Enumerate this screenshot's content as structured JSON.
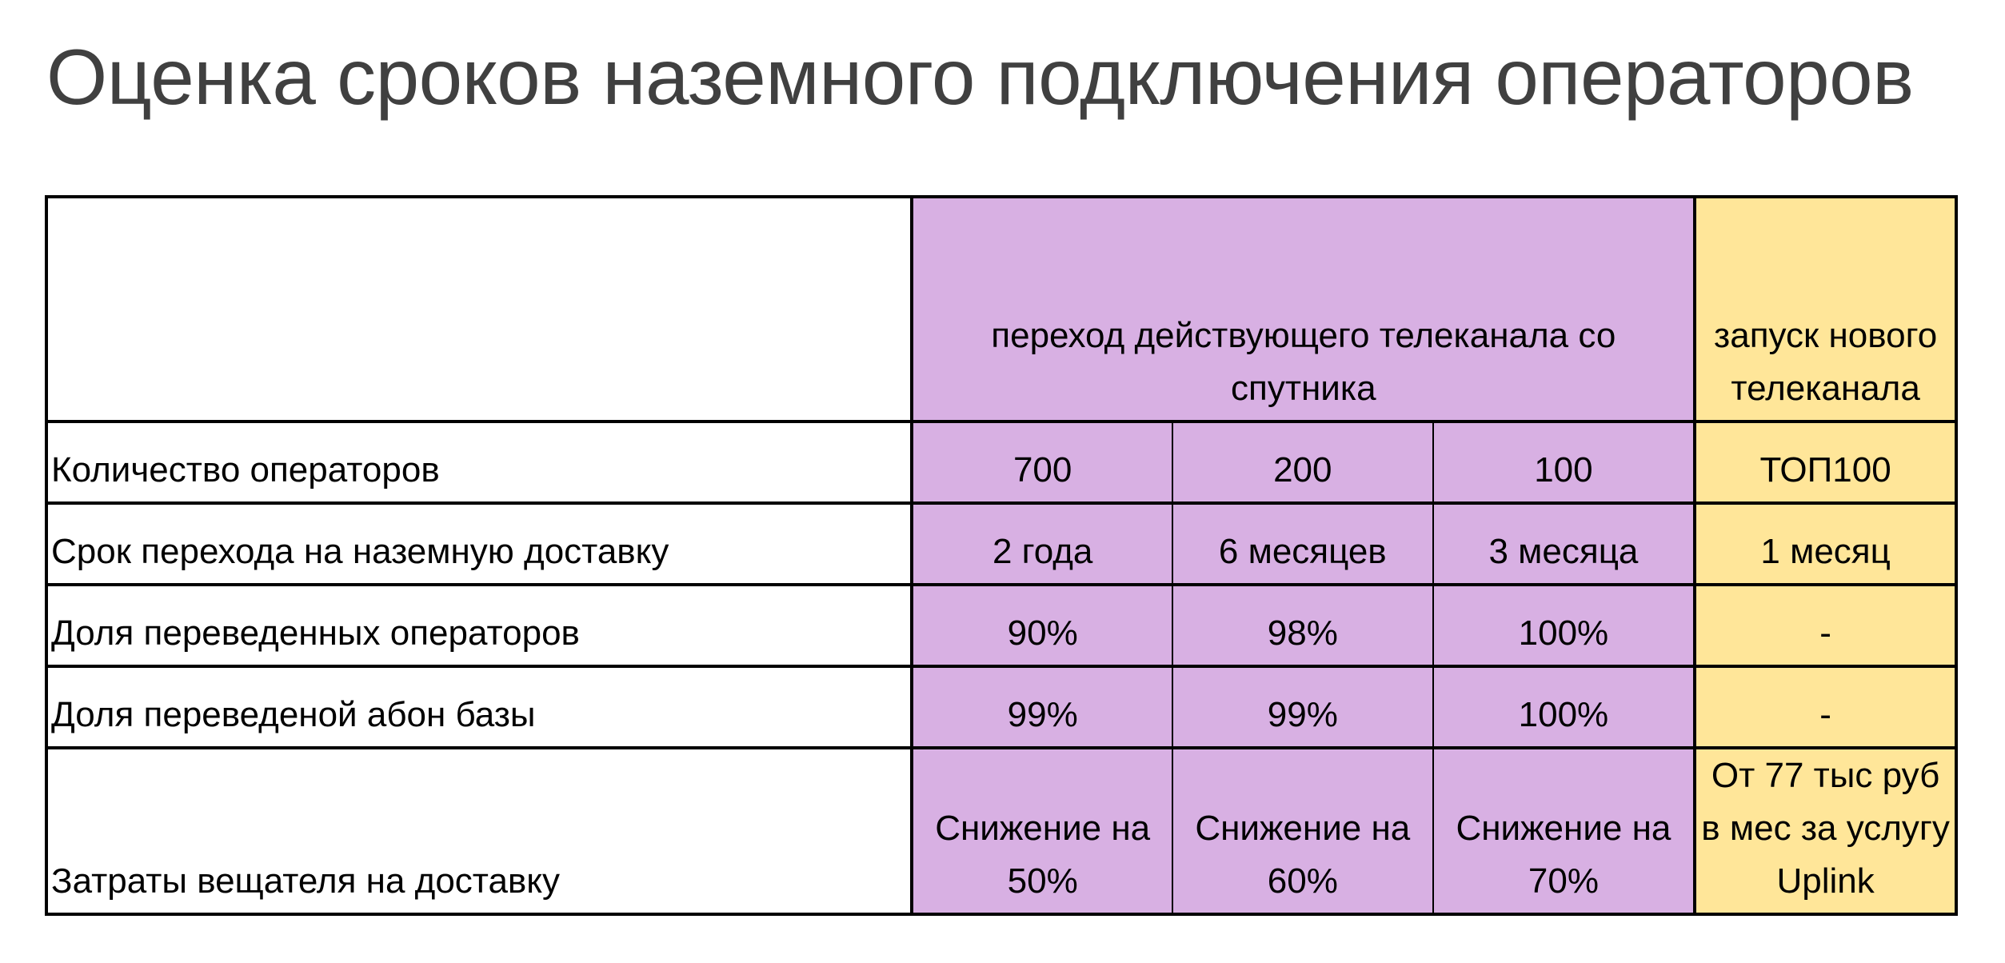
{
  "title": "Оценка сроков наземного подключения операторов",
  "colors": {
    "satellite_columns": "#D8B0E3",
    "new_channel_column": "#FFE699",
    "border": "#000000",
    "title": "#404040"
  },
  "table": {
    "header": {
      "satellite": "переход действующего телеканала со спутника",
      "new_channel": "запуск нового телеканала"
    },
    "rows": [
      {
        "label": "Количество операторов",
        "values": [
          "700",
          "200",
          "100",
          "ТОП100"
        ]
      },
      {
        "label": "Срок перехода на наземную доставку",
        "values": [
          "2 года",
          "6 месяцев",
          "3 месяца",
          "1 месяц"
        ]
      },
      {
        "label": "Доля переведенных операторов",
        "values": [
          "90%",
          "98%",
          "100%",
          "-"
        ]
      },
      {
        "label": "Доля переведеной абон базы",
        "values": [
          "99%",
          "99%",
          "100%",
          "-"
        ]
      },
      {
        "label": "Затраты вещателя на доставку",
        "values": [
          "Снижение на 50%",
          "Снижение на 60%",
          "Снижение на 70%",
          "От 77 тыс руб в мес за услугу Uplink"
        ]
      }
    ]
  }
}
